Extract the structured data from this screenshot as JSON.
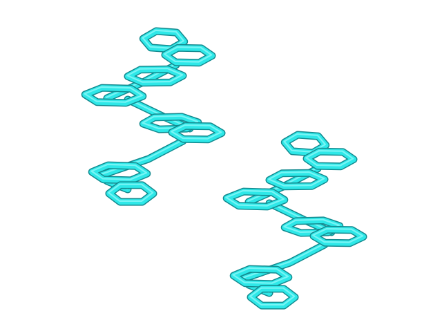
{
  "scene": {
    "background": "#ffffff",
    "stick_color": "#2ee8e8",
    "stick_shadow": "#138a8f",
    "stick_highlight": "#b6ffff",
    "molecules": [
      {
        "name": "helicene-left",
        "rings": 8
      },
      {
        "name": "helicene-right",
        "rings": 8
      }
    ]
  }
}
